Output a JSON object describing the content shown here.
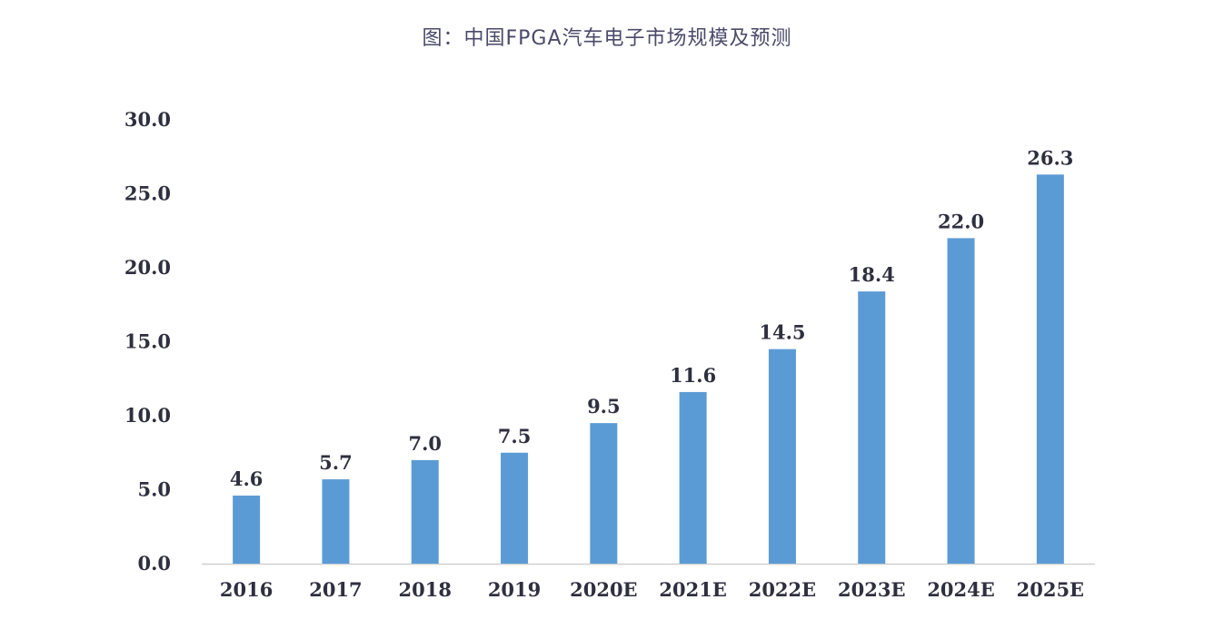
{
  "chart_data": {
    "type": "bar",
    "title": "图：中国FPGA汽车电子市场规模及预测",
    "categories": [
      "2016",
      "2017",
      "2018",
      "2019",
      "2020E",
      "2021E",
      "2022E",
      "2023E",
      "2024E",
      "2025E"
    ],
    "values": [
      4.6,
      5.7,
      7.0,
      7.5,
      9.5,
      11.6,
      14.5,
      18.4,
      22.0,
      26.3
    ],
    "value_labels": [
      "4.6",
      "5.7",
      "7.0",
      "7.5",
      "9.5",
      "11.6",
      "14.5",
      "18.4",
      "22.0",
      "26.3"
    ],
    "y_ticks": [
      "0.0",
      "5.0",
      "10.0",
      "15.0",
      "20.0",
      "25.0",
      "30.0"
    ],
    "ylim": [
      0,
      30
    ],
    "grid": false,
    "colors": {
      "bar": "#5b9bd5",
      "axis": "#d0d0d0",
      "text": "#2f2f3f"
    }
  }
}
